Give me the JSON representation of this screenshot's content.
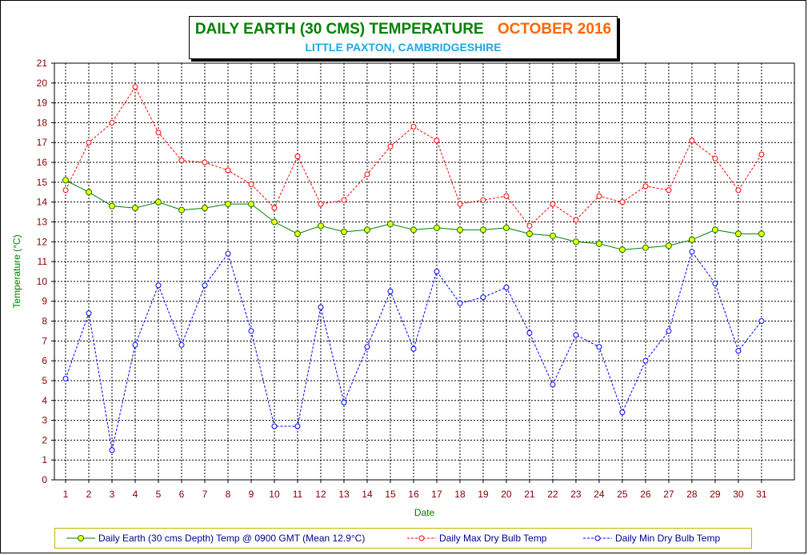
{
  "header": {
    "title": "DAILY EARTH (30 CMS) TEMPERATURE",
    "month": "OCTOBER 2016",
    "location": "LITTLE PAXTON, CAMBRIDGESHIRE"
  },
  "colors": {
    "earth_line": "#008000",
    "earth_marker": "#ffff00",
    "max_line": "#ff0000",
    "min_line": "#0000ff",
    "axis_label": "#008000",
    "tick_label_x": "#800000",
    "tick_label_y": "#800000",
    "title": "#008000",
    "month": "#ff6600",
    "subtitle": "#1ea8e6"
  },
  "chart_data": {
    "type": "line",
    "xlabel": "Date",
    "ylabel": "Temperature (°C)",
    "ylim": [
      0,
      21
    ],
    "y_ticks": [
      0,
      1,
      2,
      3,
      4,
      5,
      6,
      7,
      8,
      9,
      10,
      11,
      12,
      13,
      14,
      15,
      16,
      17,
      18,
      19,
      20,
      21
    ],
    "x": [
      1,
      2,
      3,
      4,
      5,
      6,
      7,
      8,
      9,
      10,
      11,
      12,
      13,
      14,
      15,
      16,
      17,
      18,
      19,
      20,
      21,
      22,
      23,
      24,
      25,
      26,
      27,
      28,
      29,
      30,
      31
    ],
    "grid": true,
    "legend": "bottom",
    "series": [
      {
        "name": "Daily Earth (30 cms Depth) Temp @ 0900 GMT (Mean 12.9°C)",
        "style": "solid",
        "marker": "filled-circle",
        "values": [
          15.1,
          14.5,
          13.8,
          13.7,
          14.0,
          13.6,
          13.7,
          13.9,
          13.9,
          13.0,
          12.4,
          12.8,
          12.5,
          12.6,
          12.9,
          12.6,
          12.7,
          12.6,
          12.6,
          12.7,
          12.4,
          12.3,
          12.0,
          11.9,
          11.6,
          11.7,
          11.8,
          12.1,
          12.6,
          12.4,
          12.4
        ]
      },
      {
        "name": "Daily Max Dry Bulb Temp",
        "style": "dashed",
        "marker": "open-circle",
        "values": [
          14.6,
          17.0,
          18.0,
          19.8,
          17.5,
          16.1,
          16.0,
          15.6,
          14.9,
          13.7,
          16.3,
          13.9,
          14.1,
          15.4,
          16.8,
          17.8,
          17.1,
          13.9,
          14.1,
          14.3,
          12.8,
          13.9,
          13.1,
          14.3,
          14.0,
          14.8,
          14.6,
          17.1,
          16.2,
          14.6,
          16.4
        ]
      },
      {
        "name": "Daily Min Dry Bulb Temp",
        "style": "dashed",
        "marker": "open-circle",
        "values": [
          5.1,
          8.4,
          1.5,
          6.8,
          9.8,
          6.8,
          9.8,
          11.4,
          7.5,
          2.7,
          2.7,
          8.7,
          3.9,
          6.7,
          9.5,
          6.6,
          10.5,
          8.9,
          9.2,
          9.7,
          7.4,
          4.8,
          7.3,
          6.7,
          3.4,
          6.0,
          7.5,
          11.5,
          9.9,
          6.5,
          8.0
        ]
      }
    ]
  }
}
